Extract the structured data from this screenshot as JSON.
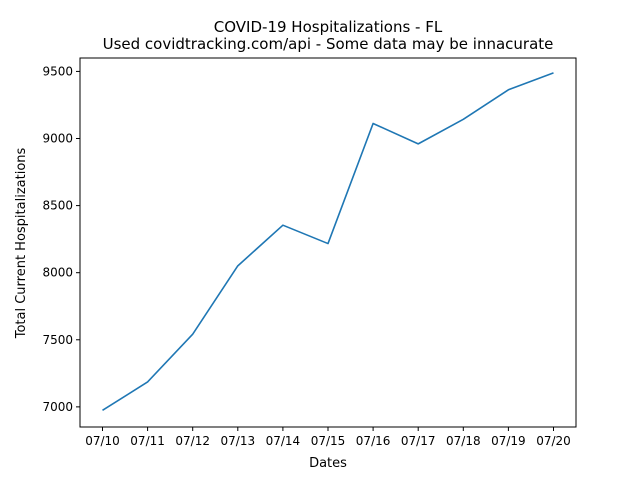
{
  "chart_data": {
    "type": "line",
    "title": "COVID-19 Hospitalizations - FL",
    "subtitle": "Used covidtracking.com/api - Some data may be innacurate",
    "xlabel": "Dates",
    "ylabel": "Total Current Hospitalizations",
    "categories": [
      "07/10",
      "07/11",
      "07/12",
      "07/13",
      "07/14",
      "07/15",
      "07/16",
      "07/17",
      "07/18",
      "07/19",
      "07/20"
    ],
    "series": [
      {
        "color": "#1f77b4",
        "values": [
          6974,
          7186,
          7542,
          8051,
          8354,
          8217,
          9112,
          8960,
          9143,
          9363,
          9489
        ]
      }
    ],
    "ylim": [
      6850,
      9600
    ],
    "yticks": [
      7000,
      7500,
      8000,
      8500,
      9000,
      9500
    ],
    "grid": false
  }
}
